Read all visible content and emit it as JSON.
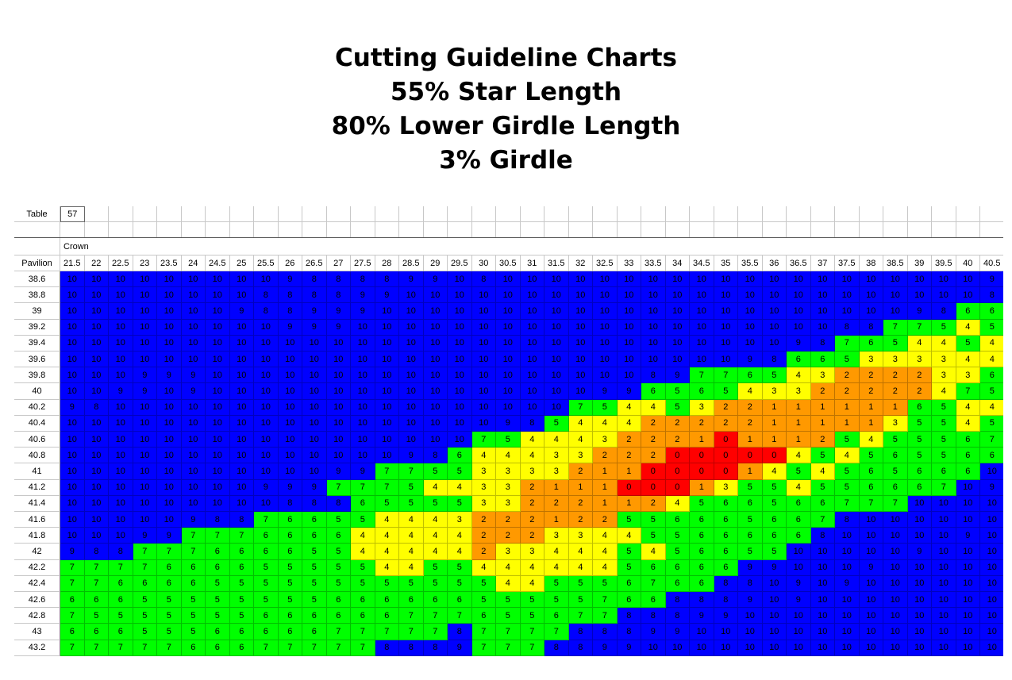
{
  "title_lines": [
    "Cutting Guideline Charts",
    "55% Star Length",
    "80% Lower Girdle Length",
    "3% Girdle"
  ],
  "table_label": "Table",
  "table_value": "57",
  "crown_label": "Crown",
  "pavilion_label": "Pavilion",
  "colors": {
    "10": "#0000ff",
    "9": "#0000ff",
    "8": "#0000ff",
    "7": "#00ff00",
    "6": "#00ff00",
    "5": "#00ff00",
    "4": "#ffff00",
    "3": "#ffff00",
    "2": "#ff9900",
    "1": "#ff9900",
    "0": "#ff0000"
  },
  "chart_data": {
    "type": "heatmap",
    "x_label": "Crown",
    "y_label": "Pavilion",
    "x": [
      "21.5",
      "22",
      "22.5",
      "23",
      "23.5",
      "24",
      "24.5",
      "25",
      "25.5",
      "26",
      "26.5",
      "27",
      "27.5",
      "28",
      "28.5",
      "29",
      "29.5",
      "30",
      "30.5",
      "31",
      "31.5",
      "32",
      "32.5",
      "33",
      "33.5",
      "34",
      "34.5",
      "35",
      "35.5",
      "36",
      "36.5",
      "37",
      "37.5",
      "38",
      "38.5",
      "39",
      "39.5",
      "40",
      "40.5"
    ],
    "y": [
      "38.6",
      "38.8",
      "39",
      "39.2",
      "39.4",
      "39.6",
      "39.8",
      "40",
      "40.2",
      "40.4",
      "40.6",
      "40.8",
      "41",
      "41.2",
      "41.4",
      "41.6",
      "41.8",
      "42",
      "42.2",
      "42.4",
      "42.6",
      "42.8",
      "43",
      "43.2"
    ],
    "values": [
      [
        10,
        10,
        10,
        10,
        10,
        10,
        10,
        10,
        10,
        9,
        8,
        8,
        8,
        8,
        9,
        9,
        10,
        8,
        10,
        10,
        10,
        10,
        10,
        10,
        10,
        10,
        10,
        10,
        10,
        10,
        10,
        10,
        10,
        10,
        10,
        10,
        10,
        10,
        9
      ],
      [
        10,
        10,
        10,
        10,
        10,
        10,
        10,
        10,
        8,
        8,
        8,
        8,
        9,
        9,
        10,
        10,
        10,
        10,
        10,
        10,
        10,
        10,
        10,
        10,
        10,
        10,
        10,
        10,
        10,
        10,
        10,
        10,
        10,
        10,
        10,
        10,
        10,
        10,
        8
      ],
      [
        10,
        10,
        10,
        10,
        10,
        10,
        10,
        9,
        8,
        8,
        9,
        9,
        9,
        10,
        10,
        10,
        10,
        10,
        10,
        10,
        10,
        10,
        10,
        10,
        10,
        10,
        10,
        10,
        10,
        10,
        10,
        10,
        10,
        10,
        10,
        9,
        8,
        6,
        6
      ],
      [
        10,
        10,
        10,
        10,
        10,
        10,
        10,
        10,
        10,
        9,
        9,
        9,
        10,
        10,
        10,
        10,
        10,
        10,
        10,
        10,
        10,
        10,
        10,
        10,
        10,
        10,
        10,
        10,
        10,
        10,
        10,
        10,
        8,
        8,
        7,
        7,
        5,
        4,
        5
      ],
      [
        10,
        10,
        10,
        10,
        10,
        10,
        10,
        10,
        10,
        10,
        10,
        10,
        10,
        10,
        10,
        10,
        10,
        10,
        10,
        10,
        10,
        10,
        10,
        10,
        10,
        10,
        10,
        10,
        10,
        10,
        9,
        8,
        7,
        6,
        5,
        4,
        4,
        5,
        4
      ],
      [
        10,
        10,
        10,
        10,
        10,
        10,
        10,
        10,
        10,
        10,
        10,
        10,
        10,
        10,
        10,
        10,
        10,
        10,
        10,
        10,
        10,
        10,
        10,
        10,
        10,
        10,
        10,
        10,
        9,
        8,
        6,
        6,
        5,
        3,
        3,
        3,
        3,
        4,
        4
      ],
      [
        10,
        10,
        10,
        9,
        9,
        9,
        10,
        10,
        10,
        10,
        10,
        10,
        10,
        10,
        10,
        10,
        10,
        10,
        10,
        10,
        10,
        10,
        10,
        10,
        8,
        9,
        7,
        7,
        6,
        5,
        4,
        3,
        2,
        2,
        2,
        2,
        3,
        3,
        6
      ],
      [
        10,
        10,
        9,
        9,
        10,
        9,
        10,
        10,
        10,
        10,
        10,
        10,
        10,
        10,
        10,
        10,
        10,
        10,
        10,
        10,
        10,
        10,
        9,
        9,
        6,
        5,
        6,
        5,
        4,
        3,
        3,
        2,
        2,
        2,
        2,
        2,
        4,
        7,
        5
      ],
      [
        9,
        8,
        10,
        10,
        10,
        10,
        10,
        10,
        10,
        10,
        10,
        10,
        10,
        10,
        10,
        10,
        10,
        10,
        10,
        10,
        10,
        7,
        5,
        4,
        4,
        5,
        3,
        2,
        2,
        1,
        1,
        1,
        1,
        1,
        1,
        6,
        5,
        4,
        4
      ],
      [
        10,
        10,
        10,
        10,
        10,
        10,
        10,
        10,
        10,
        10,
        10,
        10,
        10,
        10,
        10,
        10,
        10,
        10,
        9,
        8,
        5,
        4,
        4,
        4,
        2,
        2,
        2,
        2,
        2,
        1,
        1,
        1,
        1,
        1,
        3,
        5,
        5,
        4,
        5
      ],
      [
        10,
        10,
        10,
        10,
        10,
        10,
        10,
        10,
        10,
        10,
        10,
        10,
        10,
        10,
        10,
        10,
        10,
        7,
        5,
        4,
        4,
        4,
        3,
        2,
        2,
        2,
        1,
        0,
        1,
        1,
        1,
        2,
        5,
        4,
        5,
        5,
        5,
        6,
        7
      ],
      [
        10,
        10,
        10,
        10,
        10,
        10,
        10,
        10,
        10,
        10,
        10,
        10,
        10,
        10,
        9,
        8,
        6,
        4,
        4,
        4,
        3,
        3,
        2,
        2,
        2,
        0,
        0,
        0,
        0,
        0,
        4,
        5,
        4,
        5,
        6,
        5,
        5,
        6,
        6
      ],
      [
        10,
        10,
        10,
        10,
        10,
        10,
        10,
        10,
        10,
        10,
        10,
        9,
        9,
        7,
        7,
        5,
        5,
        3,
        3,
        3,
        3,
        2,
        1,
        1,
        0,
        0,
        0,
        0,
        1,
        4,
        5,
        4,
        5,
        6,
        5,
        6,
        6,
        6,
        10
      ],
      [
        10,
        10,
        10,
        10,
        10,
        10,
        10,
        10,
        9,
        9,
        9,
        7,
        7,
        7,
        5,
        4,
        4,
        3,
        3,
        2,
        1,
        1,
        1,
        0,
        0,
        0,
        1,
        3,
        5,
        5,
        4,
        5,
        5,
        6,
        6,
        6,
        7,
        10,
        9
      ],
      [
        10,
        10,
        10,
        10,
        10,
        10,
        10,
        10,
        10,
        8,
        8,
        8,
        6,
        5,
        5,
        5,
        5,
        3,
        3,
        2,
        2,
        2,
        1,
        1,
        2,
        4,
        5,
        6,
        6,
        5,
        6,
        6,
        7,
        7,
        7,
        10,
        10,
        10,
        10
      ],
      [
        10,
        10,
        10,
        10,
        10,
        9,
        8,
        8,
        7,
        6,
        6,
        5,
        5,
        4,
        4,
        4,
        3,
        2,
        2,
        2,
        1,
        2,
        2,
        5,
        5,
        6,
        6,
        6,
        5,
        6,
        6,
        7,
        8,
        10,
        10,
        10,
        10,
        10,
        10
      ],
      [
        10,
        10,
        10,
        9,
        9,
        7,
        7,
        7,
        6,
        6,
        6,
        6,
        4,
        4,
        4,
        4,
        4,
        2,
        2,
        2,
        3,
        3,
        4,
        4,
        5,
        5,
        6,
        6,
        6,
        6,
        6,
        8,
        10,
        10,
        10,
        10,
        10,
        9,
        10
      ],
      [
        9,
        8,
        8,
        7,
        7,
        7,
        6,
        6,
        6,
        6,
        5,
        5,
        4,
        4,
        4,
        4,
        4,
        2,
        3,
        3,
        4,
        4,
        4,
        5,
        4,
        5,
        6,
        6,
        5,
        5,
        10,
        10,
        10,
        10,
        10,
        9,
        10,
        10,
        10
      ],
      [
        7,
        7,
        7,
        7,
        6,
        6,
        6,
        6,
        5,
        5,
        5,
        5,
        5,
        4,
        4,
        5,
        5,
        4,
        4,
        4,
        4,
        4,
        4,
        5,
        6,
        6,
        6,
        6,
        9,
        9,
        10,
        10,
        10,
        9,
        10,
        10,
        10,
        10,
        10
      ],
      [
        7,
        7,
        6,
        6,
        6,
        6,
        5,
        5,
        5,
        5,
        5,
        5,
        5,
        5,
        5,
        5,
        5,
        5,
        4,
        4,
        5,
        5,
        5,
        6,
        7,
        6,
        6,
        8,
        8,
        10,
        9,
        10,
        9,
        10,
        10,
        10,
        10,
        10,
        10
      ],
      [
        6,
        6,
        6,
        5,
        5,
        5,
        5,
        5,
        5,
        5,
        5,
        6,
        6,
        6,
        6,
        6,
        6,
        5,
        5,
        5,
        5,
        5,
        7,
        6,
        6,
        8,
        8,
        8,
        9,
        10,
        9,
        10,
        10,
        10,
        10,
        10,
        10,
        10,
        10
      ],
      [
        7,
        5,
        5,
        5,
        5,
        5,
        5,
        5,
        6,
        6,
        6,
        6,
        6,
        6,
        7,
        7,
        7,
        6,
        5,
        5,
        6,
        7,
        7,
        8,
        8,
        8,
        9,
        9,
        10,
        10,
        10,
        10,
        10,
        10,
        10,
        10,
        10,
        10,
        10
      ],
      [
        6,
        6,
        6,
        5,
        5,
        5,
        6,
        6,
        6,
        6,
        6,
        7,
        7,
        7,
        7,
        7,
        8,
        7,
        7,
        7,
        7,
        8,
        8,
        8,
        9,
        9,
        10,
        10,
        10,
        10,
        10,
        10,
        10,
        10,
        10,
        10,
        10,
        10,
        10
      ],
      [
        7,
        7,
        7,
        7,
        7,
        6,
        6,
        6,
        7,
        7,
        7,
        7,
        7,
        8,
        8,
        8,
        9,
        7,
        7,
        7,
        8,
        8,
        9,
        9,
        10,
        10,
        10,
        10,
        10,
        10,
        10,
        10,
        10,
        10,
        10,
        10,
        10,
        10,
        10
      ]
    ]
  }
}
